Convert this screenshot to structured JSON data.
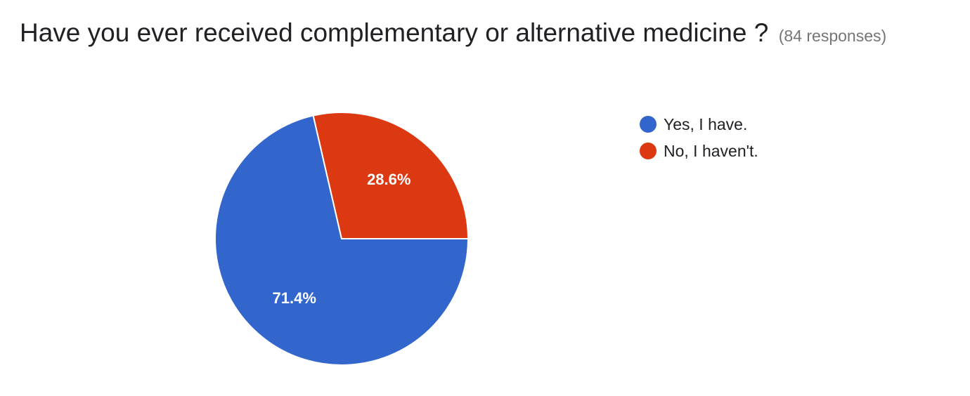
{
  "header": {
    "title": "Have you ever received complementary or alternative medicine ?",
    "subtitle": "(84 responses)"
  },
  "chart_data": {
    "type": "pie",
    "title": "Have you ever received complementary or alternative medicine ?",
    "total_responses": 84,
    "labels": [
      "Yes, I have.",
      "No, I haven't."
    ],
    "values": [
      71.4,
      28.6
    ],
    "value_labels": [
      "71.4%",
      "28.6%"
    ],
    "colors": [
      "#3366cc",
      "#dc3912"
    ],
    "legend_position": "right"
  }
}
